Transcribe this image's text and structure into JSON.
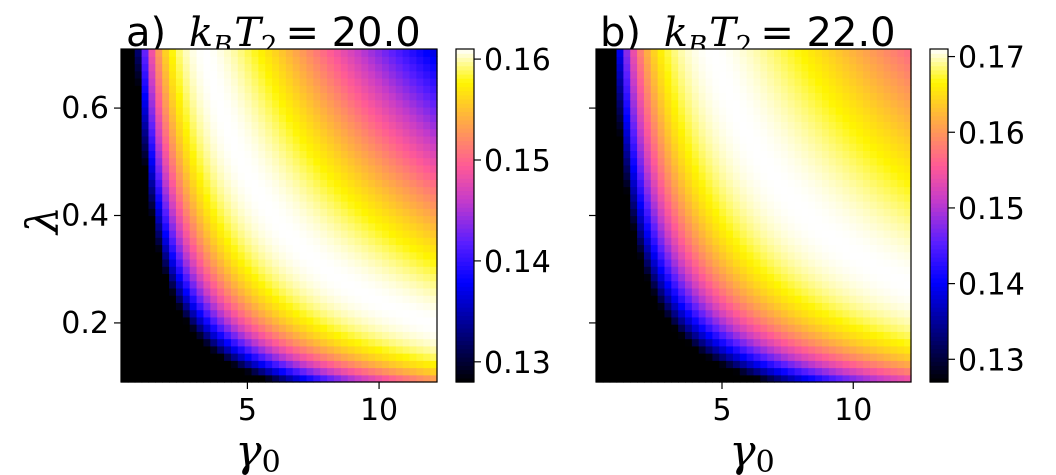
{
  "chart_data": [
    {
      "type": "heatmap",
      "panel_label": "a)",
      "title_symbol": "k",
      "title_sub1": "B",
      "title_symbol2": "T",
      "title_sub2": "2",
      "title_value": "= 20.0",
      "xlabel_symbol": "γ",
      "xlabel_sub": "0",
      "ylabel": "λ",
      "xlim": [
        0.2,
        12.2
      ],
      "ylim": [
        0.09,
        0.71
      ],
      "x_ticks": [
        5,
        10
      ],
      "x_tick_labels": [
        "5",
        "10"
      ],
      "y_ticks": [
        0.2,
        0.4,
        0.6
      ],
      "y_tick_labels": [
        "0.2",
        "0.4",
        "0.6"
      ],
      "colormap": "gnuplot2",
      "colorbar": {
        "min": 0.128,
        "max": 0.161,
        "ticks": [
          0.13,
          0.14,
          0.15,
          0.16
        ],
        "tick_labels": [
          "0.13",
          "0.14",
          "0.15",
          "0.16"
        ]
      },
      "grid": {
        "nx": 46,
        "ny": 46,
        "min_value": 0.128,
        "max_value": 0.161,
        "ridge_product": 2.4,
        "ridge_width": 1.0,
        "low_corner": [
          0.2,
          0.09
        ]
      }
    },
    {
      "type": "heatmap",
      "panel_label": "b)",
      "title_symbol": "k",
      "title_sub1": "B",
      "title_symbol2": "T",
      "title_sub2": "2",
      "title_value": "= 22.0",
      "xlabel_symbol": "γ",
      "xlabel_sub": "0",
      "ylabel": "",
      "xlim": [
        0.2,
        12.2
      ],
      "ylim": [
        0.09,
        0.71
      ],
      "x_ticks": [
        5,
        10
      ],
      "x_tick_labels": [
        "5",
        "10"
      ],
      "y_ticks": [
        0.2,
        0.4,
        0.6
      ],
      "y_tick_labels": [
        "",
        "",
        ""
      ],
      "colormap": "gnuplot2",
      "colorbar": {
        "min": 0.127,
        "max": 0.171,
        "ticks": [
          0.13,
          0.14,
          0.15,
          0.16,
          0.17
        ],
        "tick_labels": [
          "0.13",
          "0.14",
          "0.15",
          "0.16",
          "0.17"
        ]
      },
      "grid": {
        "nx": 46,
        "ny": 46,
        "min_value": 0.127,
        "max_value": 0.171,
        "ridge_product": 3.3,
        "ridge_width": 1.3,
        "low_corner": [
          0.2,
          0.09
        ]
      }
    }
  ]
}
